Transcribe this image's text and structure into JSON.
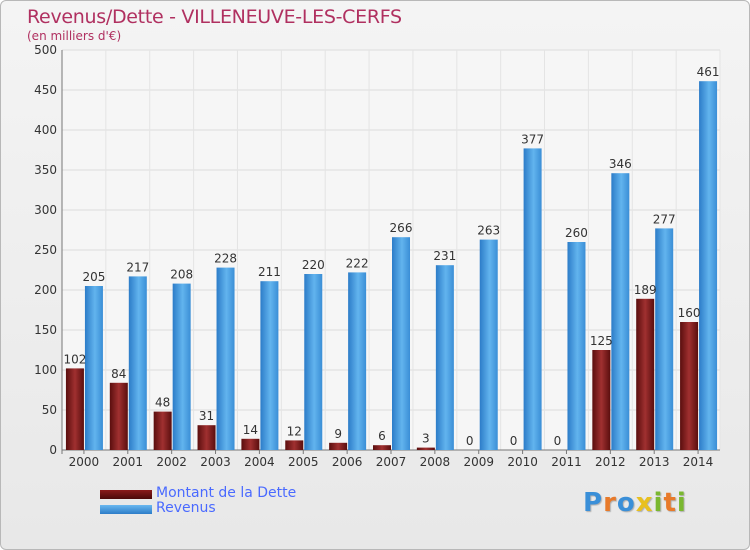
{
  "header": {
    "title": "Revenus/Dette - VILLENEUVE-LES-CERFS",
    "subtitle": "(en milliers d'€)"
  },
  "logo": {
    "text": "Proxiti",
    "letter_colors": [
      "#3a8fd8",
      "#e87a2a",
      "#3a8fd8",
      "#e8c020",
      "#7ab830",
      "#e87a2a",
      "#7ab830"
    ]
  },
  "chart_data": {
    "type": "bar",
    "title": "Revenus/Dette - VILLENEUVE-LES-CERFS",
    "ylabel": "(en milliers d'€)",
    "ylim": [
      0,
      500
    ],
    "yticks": [
      0,
      50,
      100,
      150,
      200,
      250,
      300,
      350,
      400,
      450,
      500
    ],
    "categories": [
      "2000",
      "2001",
      "2002",
      "2003",
      "2004",
      "2005",
      "2006",
      "2007",
      "2008",
      "2009",
      "2010",
      "2011",
      "2012",
      "2013",
      "2014"
    ],
    "grid": true,
    "legend_position": "bottom-left",
    "series": [
      {
        "name": "Montant de la Dette",
        "color": "#7a1a1a",
        "values": [
          102,
          84,
          48,
          31,
          14,
          12,
          9,
          6,
          3,
          0,
          0,
          0,
          125,
          189,
          160
        ],
        "labels": [
          "102",
          "84",
          "48",
          "31",
          "14",
          "12",
          "9",
          "6",
          "3",
          "0",
          "0",
          "0",
          "125",
          "189",
          "160"
        ]
      },
      {
        "name": "Revenus",
        "color": "#4a9fe0",
        "values": [
          205,
          217,
          208,
          228,
          211,
          220,
          222,
          266,
          231,
          263,
          377,
          260,
          346,
          277,
          461
        ],
        "labels": [
          "205",
          "217",
          "208",
          "228",
          "211",
          "220",
          "222",
          "266",
          "231",
          "263",
          "377",
          "260",
          "346",
          "277",
          "461"
        ]
      }
    ]
  }
}
